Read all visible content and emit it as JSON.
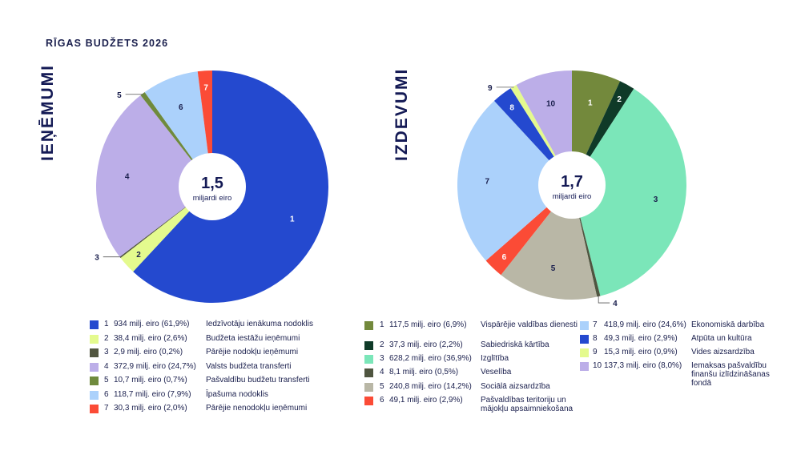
{
  "title": "RĪGAS BUDŽETS 2026",
  "chart_data": [
    {
      "type": "pie",
      "title": "IEŅĒMUMI",
      "center_value": "1,5",
      "center_unit": "miljardi eiro",
      "categories": [
        "1",
        "2",
        "3",
        "4",
        "5",
        "6",
        "7"
      ],
      "values": [
        934,
        38.4,
        2.9,
        372.9,
        10.7,
        118.7,
        30.3
      ],
      "percents": [
        61.9,
        2.6,
        0.2,
        24.7,
        0.7,
        7.9,
        2.0
      ],
      "colors": [
        "#2449cf",
        "#e4fa8e",
        "#525640",
        "#bcaee8",
        "#6f8a3d",
        "#abd1fb",
        "#fb4b36"
      ],
      "label_colors": [
        "#ffffff",
        "#1a1f4d",
        "#1a1f4d",
        "#1a1f4d",
        "#1a1f4d",
        "#1a1f4d",
        "#ffffff"
      ],
      "legend": [
        {
          "num": "1",
          "amount": "934 milj. eiro (61,9%)",
          "desc": "Iedzīvotāju ienākuma nodoklis"
        },
        {
          "num": "2",
          "amount": "38,4 milj. eiro (2,6%)",
          "desc": "Budžeta iestāžu ieņēmumi"
        },
        {
          "num": "3",
          "amount": "2,9 milj. eiro (0,2%)",
          "desc": "Pārējie nodokļu ieņēmumi"
        },
        {
          "num": "4",
          "amount": "372,9 milj. eiro (24,7%)",
          "desc": "Valsts budžeta transferti"
        },
        {
          "num": "5",
          "amount": "10,7 milj. eiro (0,7%)",
          "desc": "Pašvaldību budžetu transferti"
        },
        {
          "num": "6",
          "amount": "118,7 milj. eiro (7,9%)",
          "desc": "Īpašuma nodoklis"
        },
        {
          "num": "7",
          "amount": "30,3 milj. eiro (2,0%)",
          "desc": "Pārējie nenodokļu ieņēmumi"
        }
      ],
      "legend_position": "bottom"
    },
    {
      "type": "pie",
      "title": "IZDEVUMI",
      "center_value": "1,7",
      "center_unit": "miljardi eiro",
      "categories": [
        "1",
        "2",
        "3",
        "4",
        "5",
        "6",
        "7",
        "8",
        "9",
        "10"
      ],
      "values": [
        117.5,
        37.3,
        628.2,
        8.1,
        240.8,
        49.1,
        418.9,
        49.3,
        15.3,
        137.3
      ],
      "percents": [
        6.9,
        2.2,
        36.9,
        0.5,
        14.2,
        2.9,
        24.6,
        2.9,
        0.9,
        8.0
      ],
      "colors": [
        "#73893c",
        "#0f3a28",
        "#7be6b9",
        "#4f5540",
        "#b9b7a6",
        "#fb4b36",
        "#abd1fb",
        "#2449cf",
        "#e4fa8e",
        "#bcaee8"
      ],
      "label_colors": [
        "#ffffff",
        "#ffffff",
        "#1a1f4d",
        "#1a1f4d",
        "#1a1f4d",
        "#ffffff",
        "#1a1f4d",
        "#ffffff",
        "#1a1f4d",
        "#1a1f4d"
      ],
      "legend": [
        {
          "num": "1",
          "amount": "117,5 milj. eiro (6,9%)",
          "desc": "Vispārējie valdības dienesti"
        },
        {
          "num": "2",
          "amount": "37,3 milj. eiro (2,2%)",
          "desc": "Sabiedriskā kārtība"
        },
        {
          "num": "3",
          "amount": "628,2 milj. eiro (36,9%)",
          "desc": "Izglītība"
        },
        {
          "num": "4",
          "amount": "8,1 milj. eiro (0,5%)",
          "desc": "Veselība"
        },
        {
          "num": "5",
          "amount": "240,8 milj. eiro (14,2%)",
          "desc": "Sociālā aizsardzība"
        },
        {
          "num": "6",
          "amount": "49,1 milj. eiro (2,9%)",
          "desc": "Pašvaldības teritoriju un mājokļu apsaimniekošana"
        },
        {
          "num": "7",
          "amount": "418,9 milj. eiro (24,6%)",
          "desc": "Ekonomiskā darbība"
        },
        {
          "num": "8",
          "amount": "49,3 milj. eiro (2,9%)",
          "desc": "Atpūta un kultūra"
        },
        {
          "num": "9",
          "amount": "15,3 milj. eiro (0,9%)",
          "desc": "Vides aizsardzība"
        },
        {
          "num": "10",
          "amount": "137,3 milj. eiro (8,0%)",
          "desc": "Iemaksas pašvaldību finanšu izlīdzināšanas fondā"
        }
      ],
      "legend_position": "bottom"
    }
  ]
}
